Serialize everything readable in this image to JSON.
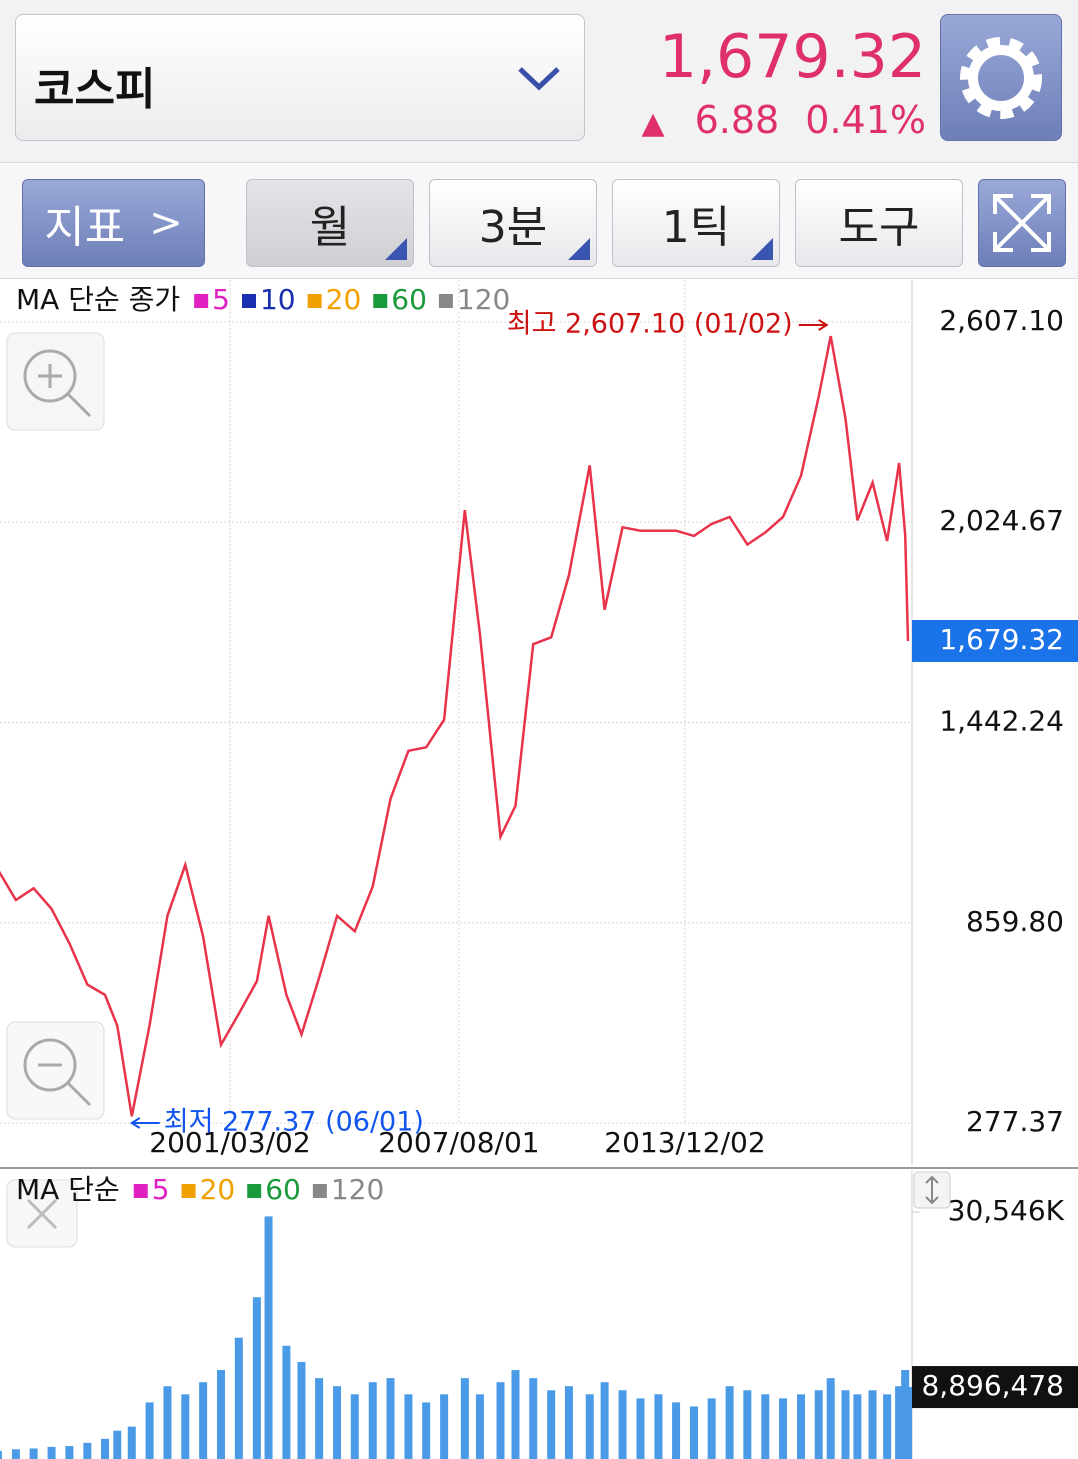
{
  "header": {
    "symbol": "코스피",
    "price": "1,679.32",
    "change": "6.88",
    "change_pct": "0.41%"
  },
  "toolbar": {
    "indicator": "지표",
    "period": "월",
    "interval": "3분",
    "tick": "1틱",
    "tool": "도구"
  },
  "chart_data": [
    {
      "type": "line",
      "legend_title": "MA 단순 종가",
      "legend": [
        {
          "name": "5",
          "color": "#e020c0"
        },
        {
          "name": "10",
          "color": "#1a2fb0"
        },
        {
          "name": "20",
          "color": "#f0a000"
        },
        {
          "name": "60",
          "color": "#1a9a3a"
        },
        {
          "name": "120",
          "color": "#888888"
        }
      ],
      "color": "#e8334a",
      "x": [
        "1994/09/01",
        "1995/03/02",
        "1995/09/01",
        "1996/03/02",
        "1996/09/02",
        "1997/03/03",
        "1997/09/01",
        "1998/01/05",
        "1998/06/01",
        "1998/12/01",
        "1999/06/01",
        "1999/12/01",
        "2000/06/01",
        "2000/12/01",
        "2001/06/01",
        "2001/12/03",
        "2002/04/01",
        "2002/10/01",
        "2003/03/03",
        "2003/09/01",
        "2004/03/02",
        "2004/09/01",
        "2005/03/02",
        "2005/09/01",
        "2006/03/02",
        "2006/09/01",
        "2007/03/02",
        "2007/10/01",
        "2008/03/03",
        "2008/10/01",
        "2009/03/02",
        "2009/09/01",
        "2010/03/02",
        "2010/09/01",
        "2011/04/01",
        "2011/09/01",
        "2012/03/02",
        "2012/09/03",
        "2013/03/04",
        "2013/09/02",
        "2014/03/03",
        "2014/09/01",
        "2015/03/02",
        "2015/09/01",
        "2016/03/02",
        "2016/09/01",
        "2017/03/02",
        "2017/09/01",
        "2018/01/02",
        "2018/06/01",
        "2018/10/01",
        "2019/03/04",
        "2019/08/01",
        "2019/12/02",
        "2020/02/03",
        "2020/03/02"
      ],
      "values": [
        1014,
        926,
        960,
        900,
        800,
        680,
        650,
        560,
        297,
        562,
        880,
        1028,
        820,
        505,
        595,
        690,
        880,
        650,
        535,
        700,
        880,
        835,
        965,
        1220,
        1360,
        1370,
        1450,
        2060,
        1700,
        1110,
        1200,
        1670,
        1690,
        1870,
        2190,
        1770,
        2010,
        2000,
        2000,
        2000,
        1985,
        2020,
        2040,
        1960,
        1995,
        2040,
        2160,
        2390,
        2566,
        2326,
        2030,
        2140,
        1970,
        2197,
        1987,
        1679.32
      ],
      "ylim": [
        277.37,
        2607.1
      ],
      "yticks": [
        {
          "value": 2607.1,
          "label": "2,607.10"
        },
        {
          "value": 2024.67,
          "label": "2,024.67"
        },
        {
          "value": 1442.24,
          "label": "1,442.24"
        },
        {
          "value": 859.8,
          "label": "859.80"
        },
        277.37
      ],
      "xticks": [
        "2001/03/02",
        "2007/08/01",
        "2013/12/02"
      ],
      "grid": true,
      "current": {
        "value": 1679.32,
        "label": "1,679.32",
        "color": "#1a73e8"
      },
      "annotations": [
        {
          "text": "최고 2,607.10 (01/02)",
          "value": 2607.1,
          "x": "2018/01/02",
          "color": "#cc1111"
        },
        {
          "text": "최저 277.37 (06/01)",
          "value": 277.37,
          "x": "1998/06/01",
          "color": "#1155ee"
        }
      ]
    },
    {
      "type": "bar",
      "legend_title": "MA 단순",
      "legend": [
        {
          "name": "5",
          "color": "#e020c0"
        },
        {
          "name": "20",
          "color": "#f0a000"
        },
        {
          "name": "60",
          "color": "#1a9a3a"
        },
        {
          "name": "120",
          "color": "#888888"
        }
      ],
      "color": "#4a9ae8",
      "x": [
        "1994/09/01",
        "1995/03/02",
        "1995/09/01",
        "1996/03/02",
        "1996/09/02",
        "1997/03/03",
        "1997/09/01",
        "1998/01/05",
        "1998/06/01",
        "1998/12/01",
        "1999/06/01",
        "1999/12/01",
        "2000/06/01",
        "2000/12/01",
        "2001/06/01",
        "2001/12/03",
        "2002/04/01",
        "2002/10/01",
        "2003/03/03",
        "2003/09/01",
        "2004/03/02",
        "2004/09/01",
        "2005/03/02",
        "2005/09/01",
        "2006/03/02",
        "2006/09/01",
        "2007/03/02",
        "2007/10/01",
        "2008/03/03",
        "2008/10/01",
        "2009/03/02",
        "2009/09/01",
        "2010/03/02",
        "2010/09/01",
        "2011/04/01",
        "2011/09/01",
        "2012/03/02",
        "2012/09/03",
        "2013/03/04",
        "2013/09/02",
        "2014/03/03",
        "2014/09/01",
        "2015/03/02",
        "2015/09/01",
        "2016/03/02",
        "2016/09/01",
        "2017/03/02",
        "2017/09/01",
        "2018/01/02",
        "2018/06/01",
        "2018/10/01",
        "2019/03/04",
        "2019/08/01",
        "2019/12/02",
        "2020/02/03",
        "2020/03/02"
      ],
      "values": [
        1000000,
        1200000,
        1300000,
        1500000,
        1600000,
        2000000,
        2500000,
        3500000,
        4000000,
        7000000,
        9000000,
        8000000,
        9500000,
        11000000,
        15000000,
        20000000,
        30000000,
        14000000,
        12000000,
        10000000,
        9000000,
        8000000,
        9500000,
        10000000,
        8000000,
        7000000,
        8000000,
        10000000,
        8000000,
        9500000,
        11000000,
        10000000,
        8500000,
        9000000,
        8000000,
        9500000,
        8500000,
        7500000,
        8000000,
        7000000,
        6500000,
        7500000,
        9000000,
        8500000,
        8000000,
        7500000,
        8000000,
        8500000,
        10000000,
        8500000,
        8000000,
        8500000,
        8000000,
        9000000,
        11000000,
        8896478
      ],
      "ylim": [
        0,
        30546000
      ],
      "yticks": [
        {
          "value": 30546000,
          "label": "30,546K"
        }
      ],
      "current": {
        "value": 8896478,
        "label": "8,896,478",
        "color": "#111111"
      }
    }
  ]
}
